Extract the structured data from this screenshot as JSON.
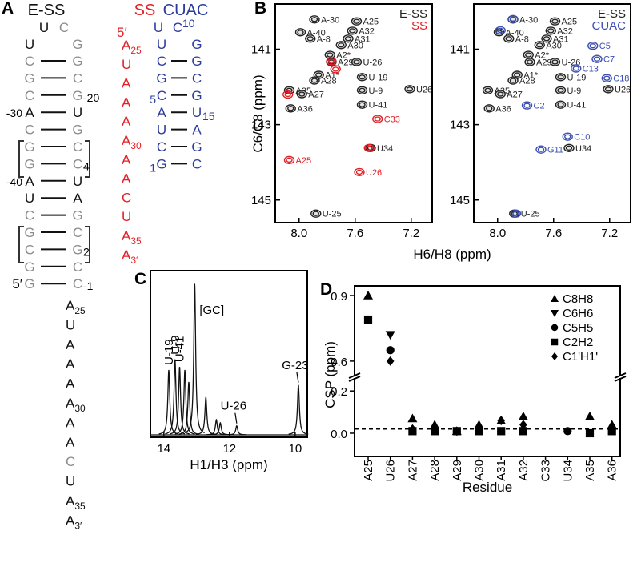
{
  "panel_a": {
    "label": "A",
    "e_ss": {
      "title": "E-SS",
      "color": "#111111",
      "gc_color": "#8c8c8c",
      "loop": [
        {
          "left": "U",
          "right": "C"
        },
        {
          "left": "U",
          "right": "G"
        }
      ],
      "pairs": [
        {
          "left": "C",
          "right": "G"
        },
        {
          "left": "G",
          "right": "C"
        },
        {
          "left": "C",
          "right": "G",
          "right_note": "-20"
        },
        {
          "left": "A",
          "right": "U",
          "left_note": "-30"
        },
        {
          "left": "C",
          "right": "G"
        },
        {
          "left": "G",
          "right": "C"
        },
        {
          "left": "G",
          "right": "C",
          "right_note": "4"
        },
        {
          "left": "A",
          "right": "U",
          "left_note": "-40"
        },
        {
          "left": "U",
          "right": "A"
        },
        {
          "left": "C",
          "right": "G"
        },
        {
          "left": "G",
          "right": "C"
        },
        {
          "left": "C",
          "right": "G",
          "right_note": "2"
        },
        {
          "left": "G",
          "right": "C"
        },
        {
          "left": "G",
          "right": "C",
          "left_note": "5′",
          "right_note": "-1"
        }
      ],
      "tail": [
        {
          "base": "A",
          "num": "25"
        },
        {
          "base": "U"
        },
        {
          "base": "A"
        },
        {
          "base": "A"
        },
        {
          "base": "A"
        },
        {
          "base": "A",
          "num": "30"
        },
        {
          "base": "A"
        },
        {
          "base": "A"
        },
        {
          "base": "C"
        },
        {
          "base": "U"
        },
        {
          "base": "A",
          "num": "35"
        },
        {
          "base": "A",
          "num": "3′"
        }
      ]
    },
    "ss": {
      "title": "SS",
      "color": "#e41f26",
      "end": "5′",
      "bases": [
        {
          "base": "A",
          "num": "25"
        },
        {
          "base": "U"
        },
        {
          "base": "A"
        },
        {
          "base": "A"
        },
        {
          "base": "A"
        },
        {
          "base": "A",
          "num": "30"
        },
        {
          "base": "A"
        },
        {
          "base": "A"
        },
        {
          "base": "C"
        },
        {
          "base": "U"
        },
        {
          "base": "A",
          "num": "35"
        },
        {
          "base": "A",
          "num": "3′"
        }
      ]
    },
    "cuac": {
      "title": "CUAC",
      "color": "#2b3b9c",
      "loop": [
        {
          "left": "U",
          "right": "C",
          "right_note": "10"
        },
        {
          "left": "U",
          "right": "G"
        }
      ],
      "pairs": [
        {
          "left": "C",
          "right": "G"
        },
        {
          "left": "G",
          "right": "C"
        },
        {
          "left": "C",
          "right": "G",
          "left_note": "5"
        },
        {
          "left": "A",
          "right": "U",
          "right_note": "15"
        },
        {
          "left": "U",
          "right": "A"
        },
        {
          "left": "C",
          "right": "G"
        },
        {
          "left": "G",
          "right": "C",
          "left_note": "1"
        }
      ]
    }
  },
  "panel_b": {
    "label": "B",
    "x_label": "H6/H8 (ppm)",
    "y_label": "C6/C8 (ppm)",
    "spectra": [
      {
        "xlim": [
          8.17,
          7.05
        ],
        "ylim": [
          139.8,
          145.6
        ],
        "xticks": [
          {
            "value": 8,
            "label": "8.0"
          },
          7.6,
          7.2
        ],
        "yticks": [
          141,
          143,
          145
        ],
        "series": [
          {
            "name": "E-SS",
            "color": "#222222",
            "peaks": [
              {
                "label": "A-30",
                "x": 7.89,
                "y": 140.21
              },
              {
                "label": "A-40",
                "x": 7.99,
                "y": 140.55
              },
              {
                "label": "A-8",
                "x": 7.92,
                "y": 140.72
              },
              {
                "label": "A25",
                "x": 7.59,
                "y": 140.26
              },
              {
                "label": "A32",
                "x": 7.62,
                "y": 140.51
              },
              {
                "label": "A31",
                "x": 7.65,
                "y": 140.72
              },
              {
                "label": "A30",
                "x": 7.7,
                "y": 140.89
              },
              {
                "label": "A2*",
                "x": 7.78,
                "y": 141.15
              },
              {
                "label": "A29",
                "x": 7.77,
                "y": 141.34
              },
              {
                "label": "A1*",
                "x": 7.86,
                "y": 141.68
              },
              {
                "label": "A28",
                "x": 7.89,
                "y": 141.83
              },
              {
                "label": "A35",
                "x": 8.07,
                "y": 142.09
              },
              {
                "label": "A27",
                "x": 7.98,
                "y": 142.19
              },
              {
                "label": "A36",
                "x": 8.06,
                "y": 142.57
              },
              {
                "label": "U-26",
                "x": 7.59,
                "y": 141.34
              },
              {
                "label": "U-19",
                "x": 7.55,
                "y": 141.74
              },
              {
                "label": "U-9",
                "x": 7.55,
                "y": 142.09
              },
              {
                "label": "U26",
                "x": 7.21,
                "y": 142.06
              },
              {
                "label": "U-41",
                "x": 7.55,
                "y": 142.47
              },
              {
                "label": "U34",
                "x": 7.49,
                "y": 143.62
              },
              {
                "label": "U-25",
                "x": 7.88,
                "y": 145.36
              }
            ]
          },
          {
            "name": "SS",
            "color": "#e41f26",
            "peaks": [
              {
                "x": 7.77,
                "y": 141.32
              },
              {
                "x": 7.74,
                "y": 141.53
              },
              {
                "x": 8.08,
                "y": 142.2
              },
              {
                "label": "C33",
                "x": 7.44,
                "y": 142.85
              },
              {
                "label": "A25",
                "x": 8.07,
                "y": 143.94
              },
              {
                "label": "U26",
                "x": 7.57,
                "y": 144.26
              },
              {
                "x": 7.5,
                "y": 143.62
              }
            ]
          }
        ]
      },
      {
        "xlim": [
          8.17,
          7.05
        ],
        "ylim": [
          139.8,
          145.6
        ],
        "xticks": [
          {
            "value": 8,
            "label": "8.0"
          },
          7.6,
          7.2
        ],
        "yticks": [
          141,
          143,
          145
        ],
        "series": [
          {
            "name": "E-SS",
            "color": "#222222",
            "peaks": [
              {
                "label": "A-30",
                "x": 7.89,
                "y": 140.21
              },
              {
                "label": "A-40",
                "x": 7.99,
                "y": 140.55
              },
              {
                "label": "A-8",
                "x": 7.92,
                "y": 140.72
              },
              {
                "label": "A25",
                "x": 7.59,
                "y": 140.26
              },
              {
                "label": "A32",
                "x": 7.62,
                "y": 140.51
              },
              {
                "label": "A31",
                "x": 7.65,
                "y": 140.72
              },
              {
                "label": "A30",
                "x": 7.7,
                "y": 140.89
              },
              {
                "label": "A2*",
                "x": 7.78,
                "y": 141.15
              },
              {
                "label": "A29",
                "x": 7.77,
                "y": 141.34
              },
              {
                "label": "A1*",
                "x": 7.86,
                "y": 141.68
              },
              {
                "label": "A28",
                "x": 7.89,
                "y": 141.83
              },
              {
                "label": "A35",
                "x": 8.07,
                "y": 142.09
              },
              {
                "label": "A27",
                "x": 7.98,
                "y": 142.19
              },
              {
                "label": "A36",
                "x": 8.06,
                "y": 142.57
              },
              {
                "label": "U-26",
                "x": 7.59,
                "y": 141.34
              },
              {
                "label": "U-19",
                "x": 7.55,
                "y": 141.74
              },
              {
                "label": "U-9",
                "x": 7.55,
                "y": 142.09
              },
              {
                "label": "U26",
                "x": 7.21,
                "y": 142.06
              },
              {
                "label": "U-41",
                "x": 7.55,
                "y": 142.47
              },
              {
                "label": "U34",
                "x": 7.49,
                "y": 143.62
              },
              {
                "label": "U-25",
                "x": 7.88,
                "y": 145.36
              }
            ]
          },
          {
            "name": "CUAC",
            "color": "#3b4fb0",
            "peaks": [
              {
                "label": "C5",
                "x": 7.32,
                "y": 140.91
              },
              {
                "label": "C7",
                "x": 7.29,
                "y": 141.26
              },
              {
                "label": "C13",
                "x": 7.44,
                "y": 141.51
              },
              {
                "label": "C18",
                "x": 7.22,
                "y": 141.77
              },
              {
                "label": "C2",
                "x": 7.79,
                "y": 142.49
              },
              {
                "label": "C10",
                "x": 7.5,
                "y": 143.32
              },
              {
                "label": "G11",
                "x": 7.69,
                "y": 143.66
              },
              {
                "x": 7.89,
                "y": 140.2
              },
              {
                "x": 7.98,
                "y": 140.5
              },
              {
                "x": 7.87,
                "y": 145.36
              }
            ]
          }
        ]
      }
    ]
  },
  "panel_c": {
    "label": "C",
    "x_label": "H1/H3 (ppm)",
    "xlim": [
      14.41,
      9.63
    ],
    "xticks": [
      14,
      12,
      10
    ],
    "ylim": [
      0,
      1.05
    ],
    "color": "#111111",
    "peaks": [
      {
        "ppm": 13.85,
        "height": 0.43,
        "label": "U-19"
      },
      {
        "ppm": 13.66,
        "height": 0.5,
        "label": "U-9"
      },
      {
        "ppm": 13.52,
        "height": 0.45,
        "label": "U-41"
      },
      {
        "ppm": 13.36,
        "height": 0.43
      },
      {
        "ppm": 13.24,
        "height": 0.35
      },
      {
        "ppm": 13.06,
        "height": 1.0,
        "label": "[GC]"
      },
      {
        "ppm": 12.72,
        "height": 0.25
      },
      {
        "ppm": 12.4,
        "height": 0.1
      },
      {
        "ppm": 12.28,
        "height": 0.08
      },
      {
        "ppm": 11.78,
        "height": 0.06,
        "label": "U-26"
      },
      {
        "ppm": 9.9,
        "height": 0.33,
        "label": "G-23"
      }
    ]
  },
  "panel_d": {
    "type": "scatter",
    "label": "D",
    "x_label": "Residue",
    "y_label": "CSP (ppm)",
    "categories": [
      "A25",
      "U26",
      "A27",
      "A28",
      "A29",
      "A30",
      "A31",
      "A32",
      "C33",
      "U34",
      "A35",
      "A36"
    ],
    "ylim": [
      -0.11,
      0.944
    ],
    "ybreak": [
      0.25,
      0.541
    ],
    "yticks": [
      {
        "value": 0,
        "label": "0.0"
      },
      0.2,
      0.6,
      0.9
    ],
    "reference_line": 0.02,
    "legend": "upper right",
    "series": [
      {
        "name": "C8H8",
        "marker": "triangle-up",
        "color": "#000000",
        "values": [
          0.9,
          null,
          0.07,
          0.04,
          0.01,
          0.04,
          0.06,
          0.08,
          null,
          null,
          0.08,
          0.04
        ]
      },
      {
        "name": "C6H6",
        "marker": "triangle-down",
        "color": "#000000",
        "values": [
          null,
          0.72,
          null,
          null,
          null,
          null,
          null,
          null,
          null,
          null,
          null,
          null
        ]
      },
      {
        "name": "C5H5",
        "marker": "circle",
        "color": "#000000",
        "values": [
          null,
          0.65,
          null,
          null,
          null,
          null,
          null,
          null,
          null,
          0.01,
          null,
          0.02
        ]
      },
      {
        "name": "C2H2",
        "marker": "square",
        "color": "#000000",
        "values": [
          0.79,
          null,
          0.01,
          0.01,
          0.01,
          0.01,
          0.01,
          0.01,
          null,
          null,
          0.0,
          0.01
        ]
      },
      {
        "name": "C1'H1'",
        "marker": "diamond",
        "color": "#000000",
        "values": [
          null,
          0.6,
          0.02,
          0.02,
          0.01,
          0.02,
          0.06,
          0.04,
          null,
          null,
          null,
          0.02
        ]
      }
    ]
  }
}
